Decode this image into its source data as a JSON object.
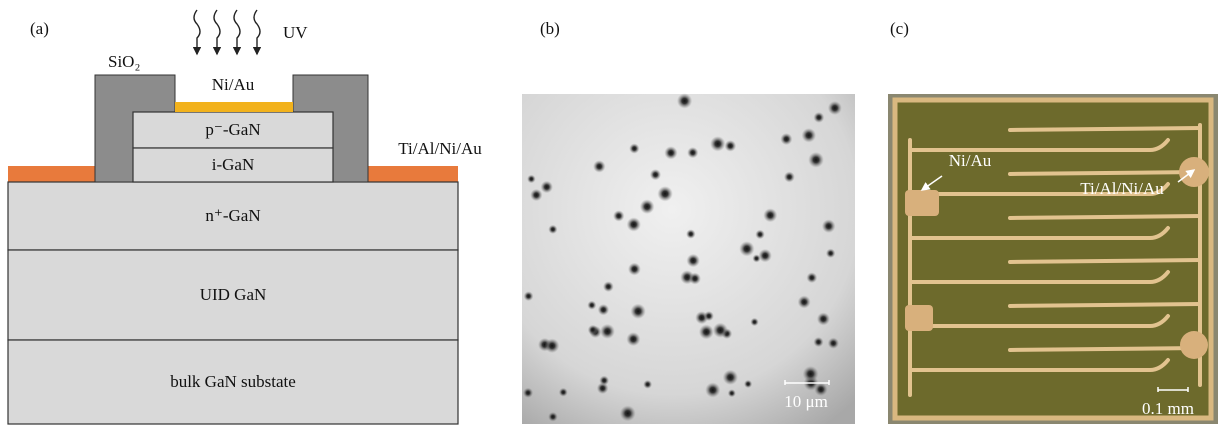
{
  "panel_a": {
    "label": "(a)",
    "uv": "UV",
    "contact_top": "Ni/Au",
    "oxide": "SiO₂",
    "contact_side": "Ti/Al/Ni/Au",
    "layers": [
      "p⁻-GaN",
      "i-GaN",
      "n⁺-GaN",
      "UID GaN",
      "bulk GaN substate"
    ]
  },
  "panel_b": {
    "label": "(b)",
    "scale_bar": "10 μm"
  },
  "panel_c": {
    "label": "(c)",
    "labels": [
      "Ni/Au",
      "Ti/Al/Ni/Au"
    ],
    "scale_bar": "0.1 mm"
  }
}
